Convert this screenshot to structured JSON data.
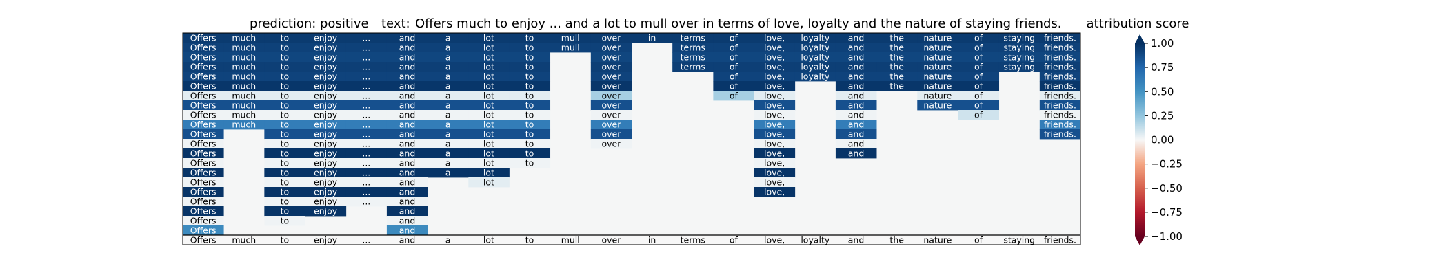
{
  "chart_data": {
    "type": "heatmap",
    "title": {
      "prediction_label": "prediction:",
      "prediction_value": "positive",
      "text_label": "text:",
      "text_value": "Offers much to enjoy ... and a lot to mull over in terms of love, loyalty and the nature of staying friends."
    },
    "tokens": [
      "Offers",
      "much",
      "to",
      "enjoy",
      "...",
      "and",
      "a",
      "lot",
      "to",
      "mull",
      "over",
      "in",
      "terms",
      "of",
      "love,",
      "loyalty",
      "and",
      "the",
      "nature",
      "of",
      "staying",
      "friends."
    ],
    "rows": [
      [
        0.95,
        0.95,
        0.95,
        0.95,
        0.95,
        0.95,
        0.95,
        0.95,
        0.95,
        0.95,
        0.95,
        0.95,
        0.95,
        0.95,
        0.95,
        0.95,
        0.95,
        0.95,
        0.95,
        0.95,
        0.95,
        0.95
      ],
      [
        0.92,
        0.92,
        0.92,
        0.92,
        0.92,
        0.92,
        0.92,
        0.92,
        0.92,
        0.92,
        0.92,
        null,
        0.92,
        0.92,
        0.92,
        0.92,
        0.92,
        0.92,
        0.92,
        0.92,
        0.92,
        0.92
      ],
      [
        0.9,
        0.9,
        0.9,
        0.9,
        0.9,
        0.9,
        0.9,
        0.9,
        0.9,
        null,
        0.9,
        null,
        0.9,
        0.9,
        0.9,
        0.9,
        0.9,
        0.9,
        0.9,
        0.9,
        0.9,
        0.9
      ],
      [
        0.93,
        0.93,
        0.93,
        0.93,
        0.93,
        0.93,
        0.93,
        0.93,
        0.93,
        null,
        0.93,
        null,
        0.93,
        0.93,
        0.93,
        0.93,
        0.93,
        0.93,
        0.93,
        0.93,
        0.93,
        0.93
      ],
      [
        0.91,
        0.91,
        0.91,
        0.91,
        0.91,
        0.91,
        0.91,
        0.91,
        0.91,
        null,
        0.91,
        null,
        null,
        0.91,
        0.91,
        0.91,
        0.91,
        0.91,
        0.91,
        0.91,
        null,
        0.91
      ],
      [
        0.97,
        0.97,
        0.97,
        0.97,
        0.97,
        0.97,
        0.97,
        0.97,
        0.97,
        null,
        0.97,
        null,
        null,
        0.97,
        0.97,
        null,
        0.97,
        0.97,
        0.97,
        0.97,
        null,
        0.97
      ],
      [
        0.05,
        0.05,
        0.05,
        0.05,
        0.05,
        0.05,
        0.05,
        0.05,
        0.05,
        null,
        0.2,
        null,
        null,
        0.2,
        0.05,
        null,
        0.05,
        null,
        0.05,
        0.05,
        null,
        0.05
      ],
      [
        0.85,
        0.85,
        0.85,
        0.85,
        0.85,
        0.85,
        0.85,
        0.85,
        0.85,
        null,
        0.85,
        null,
        null,
        null,
        0.85,
        null,
        0.85,
        null,
        0.85,
        0.85,
        null,
        0.85
      ],
      [
        0.02,
        0.02,
        0.02,
        0.02,
        0.02,
        0.02,
        0.02,
        0.02,
        0.02,
        null,
        0.02,
        null,
        null,
        null,
        0.02,
        null,
        0.02,
        null,
        null,
        0.1,
        null,
        0.02
      ],
      [
        0.62,
        0.62,
        0.62,
        0.62,
        0.62,
        0.62,
        0.62,
        0.62,
        0.62,
        null,
        0.62,
        null,
        null,
        null,
        0.62,
        null,
        0.62,
        null,
        null,
        null,
        null,
        0.62
      ],
      [
        0.85,
        null,
        0.85,
        0.85,
        0.85,
        0.85,
        0.85,
        0.85,
        0.85,
        null,
        0.85,
        null,
        null,
        null,
        0.85,
        null,
        0.85,
        null,
        null,
        null,
        null,
        0.85
      ],
      [
        0.02,
        null,
        0.02,
        0.02,
        0.02,
        0.02,
        0.02,
        0.02,
        0.02,
        null,
        0.02,
        null,
        null,
        null,
        0.02,
        null,
        0.02,
        null,
        null,
        null,
        null,
        null
      ],
      [
        0.98,
        null,
        0.98,
        0.98,
        0.98,
        0.98,
        0.98,
        0.98,
        0.98,
        null,
        null,
        null,
        null,
        null,
        0.98,
        null,
        0.98,
        null,
        null,
        null,
        null,
        null
      ],
      [
        0.02,
        null,
        0.02,
        0.02,
        0.02,
        0.02,
        0.02,
        0.02,
        0.02,
        null,
        null,
        null,
        null,
        null,
        0.02,
        null,
        null,
        null,
        null,
        null,
        null,
        null
      ],
      [
        0.98,
        null,
        0.98,
        0.98,
        0.98,
        0.98,
        0.98,
        0.98,
        null,
        null,
        null,
        null,
        null,
        null,
        0.98,
        null,
        null,
        null,
        null,
        null,
        null,
        null
      ],
      [
        0.02,
        null,
        0.02,
        0.02,
        0.02,
        0.02,
        null,
        0.05,
        null,
        null,
        null,
        null,
        null,
        null,
        0.02,
        null,
        null,
        null,
        null,
        null,
        null,
        null
      ],
      [
        0.98,
        null,
        0.98,
        0.98,
        0.98,
        0.98,
        null,
        null,
        null,
        null,
        null,
        null,
        null,
        null,
        0.98,
        null,
        null,
        null,
        null,
        null,
        null,
        null
      ],
      [
        0.02,
        null,
        0.02,
        0.02,
        0.02,
        0.02,
        null,
        null,
        null,
        null,
        null,
        null,
        null,
        null,
        null,
        null,
        null,
        null,
        null,
        null,
        null,
        null
      ],
      [
        0.98,
        null,
        0.98,
        0.98,
        null,
        0.98,
        null,
        null,
        null,
        null,
        null,
        null,
        null,
        null,
        null,
        null,
        null,
        null,
        null,
        null,
        null,
        null
      ],
      [
        0.02,
        null,
        0.02,
        null,
        null,
        0.02,
        null,
        null,
        null,
        null,
        null,
        null,
        null,
        null,
        null,
        null,
        null,
        null,
        null,
        null,
        null,
        null
      ],
      [
        0.55,
        null,
        null,
        null,
        null,
        0.55,
        null,
        null,
        null,
        null,
        null,
        null,
        null,
        null,
        null,
        null,
        null,
        null,
        null,
        null,
        null,
        null
      ],
      [
        0.0,
        0.0,
        0.0,
        0.0,
        0.0,
        0.0,
        0.0,
        0.0,
        0.0,
        0.0,
        0.0,
        0.0,
        0.0,
        0.0,
        0.0,
        0.0,
        0.0,
        0.0,
        0.0,
        0.0,
        0.0,
        0.0
      ]
    ],
    "background_color": "#f5f6f6",
    "colorbar": {
      "label": "attribution score",
      "ticks": [
        "1.00",
        "0.75",
        "0.50",
        "0.25",
        "0.00",
        "−0.25",
        "−0.50",
        "−0.75",
        "−1.00"
      ],
      "range": [
        -1,
        1
      ],
      "colormap": "RdBu"
    }
  }
}
